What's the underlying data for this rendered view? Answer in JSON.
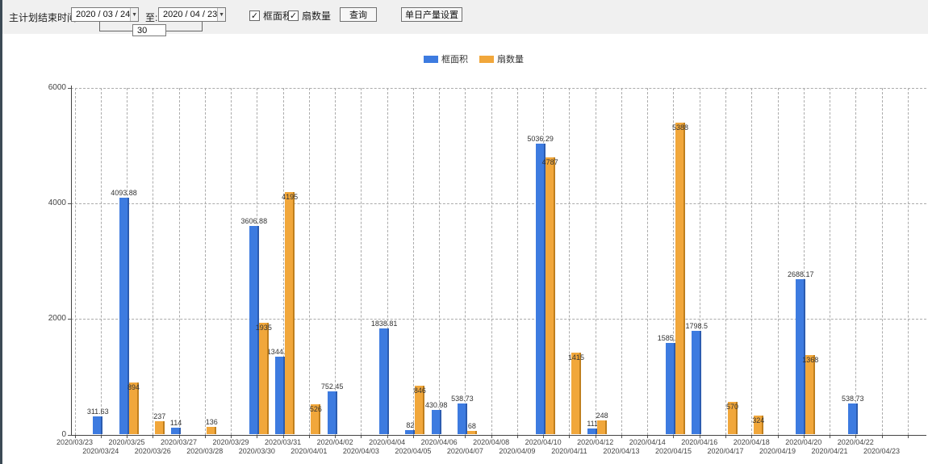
{
  "window": {
    "toolbar_bg": "#f0f0f0",
    "left_strip_color": "#3c4a55"
  },
  "toolbar": {
    "range_label": "主计划结束时间:",
    "start_date": "2020 / 03 / 24",
    "to_label": "至:",
    "end_date": "2020 / 04 / 23",
    "days_between": "30",
    "checkboxes": [
      {
        "label": "框面积",
        "checked": true
      },
      {
        "label": "扇数量",
        "checked": true
      }
    ],
    "query_button": "查询",
    "daily_output_button": "单日产量设置",
    "check_glyph": "✓",
    "dropdown_glyph": "▼"
  },
  "legend": {
    "items": [
      {
        "label": "框面积",
        "color": "#3d7be0"
      },
      {
        "label": "扇数量",
        "color": "#f1a73b"
      }
    ]
  },
  "chart_data": {
    "type": "bar",
    "title": "",
    "xlabel": "",
    "ylabel": "",
    "ylim": [
      0,
      6000
    ],
    "y_ticks": [
      "0",
      "2000",
      "4000",
      "6000"
    ],
    "grid": {
      "style": "dashed",
      "horizontal_every": 2000,
      "vertical": "per-day"
    },
    "legend_position": "top-center",
    "x_dates": [
      "2020/03/23",
      "2020/03/24",
      "2020/03/25",
      "2020/03/26",
      "2020/03/27",
      "2020/03/28",
      "2020/03/29",
      "2020/03/30",
      "2020/03/31",
      "2020/04/01",
      "2020/04/02",
      "2020/04/03",
      "2020/04/04",
      "2020/04/05",
      "2020/04/06",
      "2020/04/07",
      "2020/04/08",
      "2020/04/09",
      "2020/04/10",
      "2020/04/11",
      "2020/04/12",
      "2020/04/13",
      "2020/04/14",
      "2020/04/15",
      "2020/04/16",
      "2020/04/17",
      "2020/04/18",
      "2020/04/19",
      "2020/04/20",
      "2020/04/21",
      "2020/04/22",
      "2020/04/23"
    ],
    "series": [
      {
        "name": "框面积",
        "color": "#3d7be0",
        "edge": "#2c5cb0",
        "points": {
          "2020/03/24": 311.63,
          "2020/03/25": 4093.88,
          "2020/03/27": 114,
          "2020/03/30": 3606.88,
          "2020/03/31": 1344.95,
          "2020/04/02": 752.45,
          "2020/04/04": 1838.81,
          "2020/04/05": 82,
          "2020/04/06": 430.98,
          "2020/04/07": 538.73,
          "2020/04/10": 5036.29,
          "2020/04/12": 111,
          "2020/04/15": 1585.96,
          "2020/04/16": 1798.5,
          "2020/04/20": 2688.17,
          "2020/04/22": 538.73
        }
      },
      {
        "name": "扇数量",
        "color": "#f1a73b",
        "edge": "#c07f1d",
        "points": {
          "2020/03/25": 894,
          "2020/03/26": 237,
          "2020/03/28": 136,
          "2020/03/30": 1935,
          "2020/03/31": 4195,
          "2020/04/01": 526,
          "2020/04/05": 846,
          "2020/04/07": 68,
          "2020/04/10": 4787,
          "2020/04/11": 1415,
          "2020/04/12": 248,
          "2020/04/15": 5388,
          "2020/04/17": 570,
          "2020/04/18": 324,
          "2020/04/20": 1368
        }
      }
    ]
  }
}
